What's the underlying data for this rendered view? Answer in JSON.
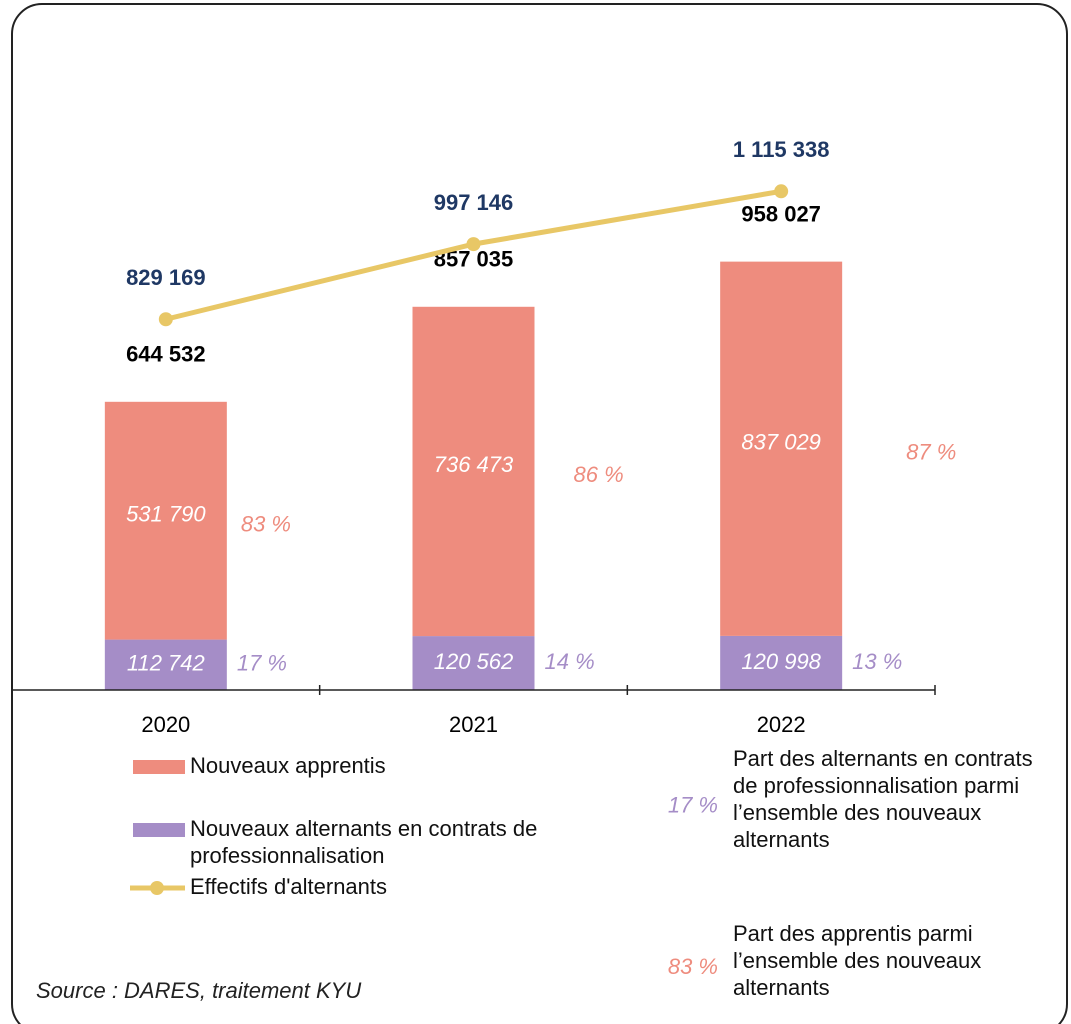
{
  "chart_data": {
    "type": "stacked_bar_line",
    "categories": [
      "2020",
      "2021",
      "2022"
    ],
    "ylim": [
      0,
      1400000
    ],
    "series": [
      {
        "name": "Nouveaux alternants en contrats de professionnalisation",
        "color": "#a58dc7",
        "values": [
          112742,
          120562,
          120998
        ],
        "value_labels": [
          "112 742",
          "120 562",
          "120 998"
        ],
        "shares": [
          17,
          14,
          13
        ],
        "share_labels": [
          "17 %",
          "14 %",
          "13 %"
        ]
      },
      {
        "name": "Nouveaux apprentis",
        "color": "#ee8c7e",
        "values": [
          531790,
          736473,
          837029
        ],
        "value_labels": [
          "531 790",
          "736 473",
          "837 029"
        ],
        "shares": [
          83,
          86,
          87
        ],
        "share_labels": [
          "83 %",
          "86 %",
          "87 %"
        ]
      }
    ],
    "totals": [
      644532,
      857035,
      958027
    ],
    "total_labels": [
      "644 532",
      "857 035",
      "958 027"
    ],
    "line": {
      "name": "Effectifs d'alternants",
      "color": "#e8c766",
      "values": [
        829169,
        997146,
        1115338
      ],
      "value_labels": [
        "829 169",
        "997 146",
        "1 115 338"
      ]
    },
    "share_legend": [
      {
        "sample": "17 %",
        "lines": [
          "Part des alternants en contrats",
          "de professionnalisation parmi",
          "l’ensemble des nouveaux",
          "alternants"
        ]
      },
      {
        "sample": "83 %",
        "lines": [
          "Part des apprentis parmi",
          "l’ensemble des nouveaux",
          "alternants"
        ]
      }
    ],
    "source": "Source : DARES, traitement KYU"
  }
}
